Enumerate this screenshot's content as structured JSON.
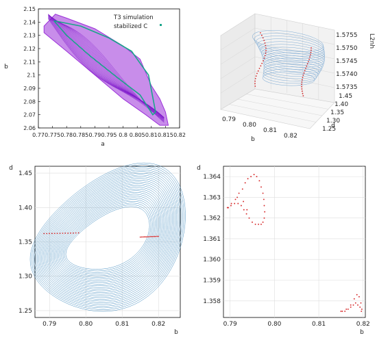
{
  "chart_data": [
    {
      "panel": "top-left",
      "type": "scatter",
      "xlabel": "a",
      "ylabel": "b",
      "xlim": [
        0.77,
        0.82
      ],
      "ylim": [
        2.06,
        2.15
      ],
      "xticks": [
        "0.77",
        "0.775",
        "0.78",
        "0.785",
        "0.79",
        "0.795",
        "0.8",
        "0.805",
        "0.81",
        "0.815",
        "0.82"
      ],
      "yticks": [
        "2.06",
        "2.07",
        "2.08",
        "2.09",
        "2.1",
        "2.11",
        "2.12",
        "2.13",
        "2.14",
        "2.15"
      ],
      "legend": {
        "placement": "top-right",
        "entries": [
          "T3 simulation",
          "stabilized C"
        ]
      },
      "series": [
        {
          "name": "T3 simulation",
          "color": "#9b30d9",
          "region_outline": [
            [
              0.772,
              2.137
            ],
            [
              0.776,
              2.146
            ],
            [
              0.78,
              2.143
            ],
            [
              0.79,
              2.135
            ],
            [
              0.8,
              2.122
            ],
            [
              0.806,
              2.112
            ],
            [
              0.808,
              2.102
            ],
            [
              0.81,
              2.092
            ],
            [
              0.813,
              2.082
            ],
            [
              0.815,
              2.072
            ],
            [
              0.816,
              2.062
            ],
            [
              0.813,
              2.062
            ],
            [
              0.808,
              2.07
            ],
            [
              0.8,
              2.082
            ],
            [
              0.79,
              2.1
            ],
            [
              0.78,
              2.118
            ],
            [
              0.772,
              2.132
            ]
          ]
        },
        {
          "name": "stabilized C",
          "color": "#1aa58a",
          "x": [
            0.7755,
            0.785,
            0.795,
            0.803,
            0.806,
            0.809,
            0.8115,
            0.8105,
            0.806,
            0.798,
            0.788,
            0.78,
            0.7755
          ],
          "y": [
            2.141,
            2.137,
            2.128,
            2.118,
            2.109,
            2.1,
            2.072,
            2.07,
            2.085,
            2.098,
            2.115,
            2.13,
            2.141
          ]
        }
      ]
    },
    {
      "panel": "top-right",
      "type": "line",
      "projection": "3d",
      "xlabel": "b",
      "ylabel": "d",
      "zlabel": "L2nh",
      "xticks": [
        "0.79",
        "0.80",
        "0.81",
        "0.82"
      ],
      "yticks": [
        "1.25",
        "1.30",
        "1.35",
        "1.40",
        "1.45"
      ],
      "zticks": [
        "1.5735",
        "1.5740",
        "1.5745",
        "1.5750",
        "1.5755"
      ]
    },
    {
      "panel": "bottom-left",
      "type": "line",
      "xlabel": "b",
      "ylabel": "d",
      "xlim": [
        0.786,
        0.826
      ],
      "ylim": [
        1.24,
        1.46
      ],
      "xticks": [
        0.79,
        0.8,
        0.81,
        0.82
      ],
      "yticks": [
        1.25,
        1.3,
        1.35,
        1.4,
        1.45
      ],
      "grid": true,
      "series": [
        {
          "color": "#1f77b4",
          "orbit_center": [
            0.806,
            1.352
          ],
          "x_range": [
            0.7885,
            0.825
          ],
          "y_range": [
            1.25,
            1.455
          ]
        },
        {
          "color": "#d62728",
          "points_left": {
            "x": [
              0.7885,
              0.798
            ],
            "y": [
              1.362,
              1.363
            ]
          },
          "points_right": {
            "x": [
              0.815,
              0.82
            ],
            "y": [
              1.357,
              1.358
            ]
          }
        }
      ]
    },
    {
      "panel": "bottom-right",
      "type": "scatter",
      "xlabel": "b",
      "ylabel": "d",
      "xlim": [
        0.7885,
        0.8205
      ],
      "ylim": [
        1.3572,
        1.3645
      ],
      "xticks": [
        0.79,
        0.8,
        0.81,
        0.82
      ],
      "yticks": [
        1.358,
        1.359,
        1.36,
        1.361,
        1.362,
        1.363,
        1.364
      ],
      "grid": true,
      "series": [
        {
          "color": "#d62728",
          "x": [
            0.7894,
            0.7903,
            0.7912,
            0.792,
            0.7928,
            0.7934,
            0.794,
            0.7947,
            0.7954,
            0.796,
            0.7966,
            0.797,
            0.7974,
            0.7976,
            0.7977,
            0.7978,
            0.7977,
            0.7974,
            0.797,
            0.7964,
            0.7957,
            0.795,
            0.7943,
            0.7937,
            0.7931,
            0.7925,
            0.7918,
            0.791,
            0.7902,
            0.7896,
            0.7916,
            0.793,
            0.7938,
            0.815,
            0.8162,
            0.8172,
            0.818,
            0.8186,
            0.8191,
            0.8195,
            0.8197,
            0.8196,
            0.8193,
            0.8188,
            0.8183,
            0.8178,
            0.8172,
            0.8166,
            0.8159,
            0.8153
          ],
          "y": [
            1.3625,
            1.3627,
            1.3629,
            1.3632,
            1.3634,
            1.3637,
            1.3639,
            1.364,
            1.3641,
            1.364,
            1.3638,
            1.3635,
            1.3632,
            1.3629,
            1.3626,
            1.3623,
            1.362,
            1.3618,
            1.3617,
            1.3617,
            1.3617,
            1.3618,
            1.362,
            1.3622,
            1.3624,
            1.3626,
            1.3627,
            1.3627,
            1.3626,
            1.3625,
            1.363,
            1.3628,
            1.3624,
            1.3575,
            1.3576,
            1.3578,
            1.3581,
            1.3583,
            1.3582,
            1.3579,
            1.3576,
            1.3575,
            1.3577,
            1.3578,
            1.3579,
            1.3578,
            1.3577,
            1.3576,
            1.3575,
            1.3575
          ]
        }
      ]
    }
  ]
}
